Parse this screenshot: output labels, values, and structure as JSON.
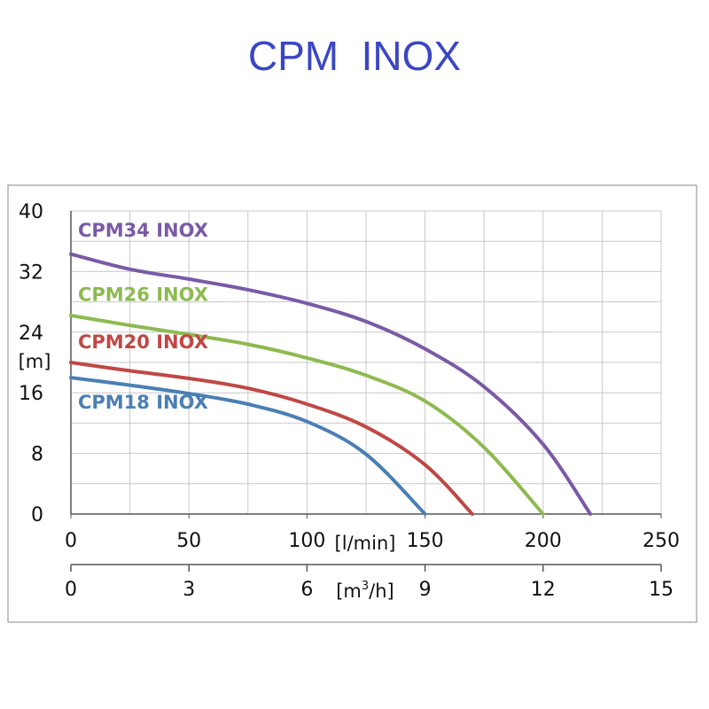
{
  "title": "CPM  INOX",
  "chart_data": {
    "type": "line",
    "title": "CPM  INOX",
    "xlabel": "[l/min]",
    "x2label_base": "[m",
    "x2label_sup": "3",
    "x2label_end": "/h]",
    "ylabel": "[m]",
    "xlim": [
      0,
      250
    ],
    "ylim": [
      0,
      40
    ],
    "x_ticks": [
      0,
      50,
      100,
      150,
      200,
      250
    ],
    "x_tick_labels": [
      "0",
      "50",
      "100",
      "150",
      "200",
      "250"
    ],
    "x2_ticks": [
      0,
      3,
      6,
      9,
      12,
      15
    ],
    "x2_tick_labels": [
      "0",
      "3",
      "6",
      "9",
      "12",
      "15"
    ],
    "y_ticks": [
      0,
      8,
      16,
      24,
      32,
      40
    ],
    "y_tick_labels": [
      "0",
      "8",
      "16",
      "24",
      "32",
      "40"
    ],
    "grid": true,
    "series": [
      {
        "name": "CPM34 INOX",
        "color": "#7a5aa6",
        "x": [
          0,
          25,
          50,
          75,
          100,
          125,
          150,
          175,
          200,
          220
        ],
        "y": [
          34.3,
          32.3,
          31.0,
          29.6,
          27.8,
          25.4,
          21.8,
          16.8,
          9.2,
          0
        ],
        "label_x": 3,
        "label_y": 36.6
      },
      {
        "name": "CPM26 INOX",
        "color": "#8dba50",
        "x": [
          0,
          25,
          50,
          75,
          100,
          125,
          150,
          175,
          200
        ],
        "y": [
          26.2,
          24.9,
          23.7,
          22.4,
          20.6,
          18.3,
          14.9,
          8.8,
          0
        ],
        "label_x": 3,
        "label_y": 28.1
      },
      {
        "name": "CPM20 INOX",
        "color": "#bf4845",
        "x": [
          0,
          25,
          50,
          75,
          100,
          125,
          150,
          170
        ],
        "y": [
          20.0,
          18.9,
          17.9,
          16.6,
          14.5,
          11.5,
          6.5,
          0
        ],
        "label_x": 3,
        "label_y": 21.9
      },
      {
        "name": "CPM18 INOX",
        "color": "#4a7fb4",
        "x": [
          0,
          25,
          50,
          75,
          100,
          125,
          150
        ],
        "y": [
          18.0,
          17.0,
          15.9,
          14.5,
          12.2,
          7.9,
          0
        ],
        "label_x": 3,
        "label_y": 13.9
      }
    ]
  }
}
